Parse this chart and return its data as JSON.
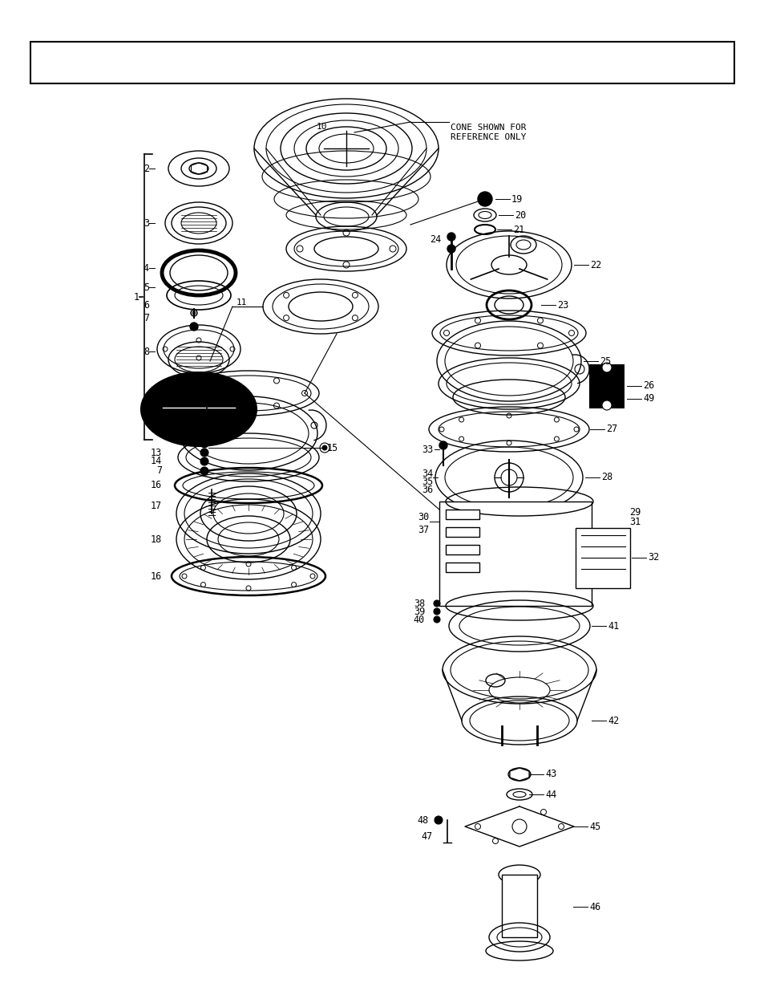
{
  "background_color": "#ffffff",
  "figure_width": 9.54,
  "figure_height": 12.35,
  "dpi": 100,
  "cone_label": "CONE SHOWN FOR\nREFERENCE ONLY"
}
